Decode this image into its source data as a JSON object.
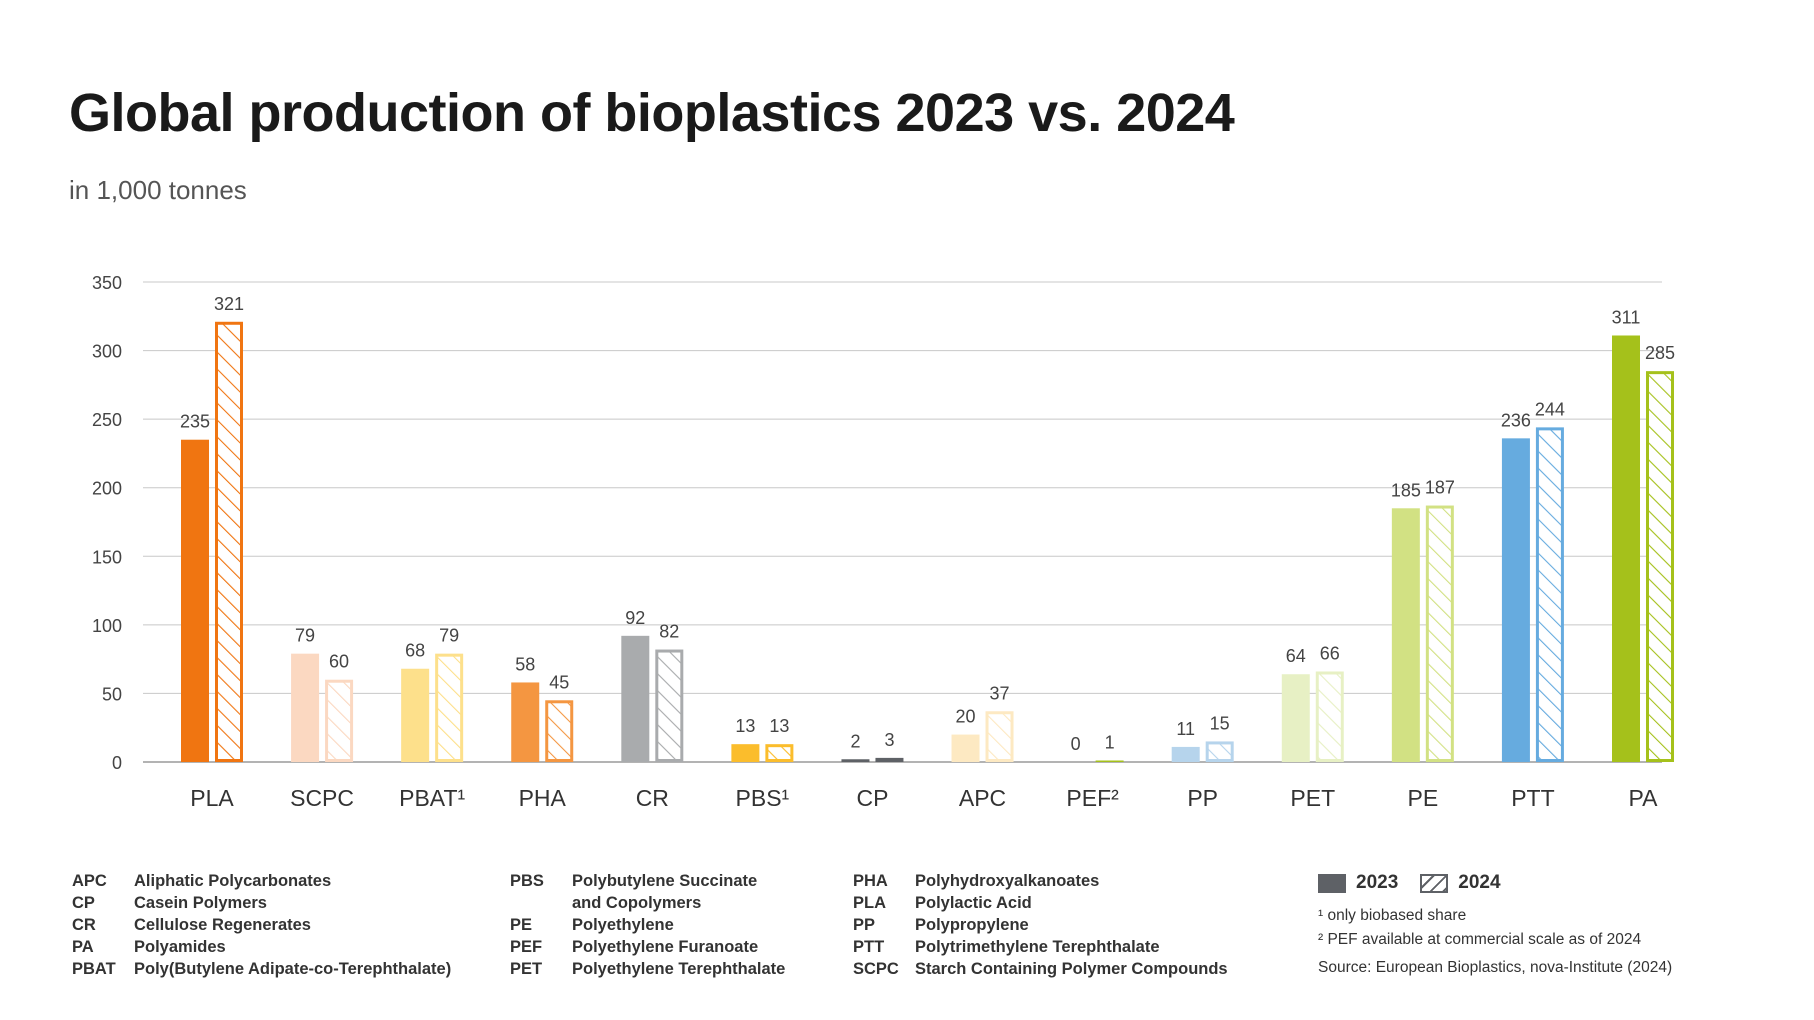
{
  "title": "Global production of bioplastics 2023 vs. 2024",
  "subtitle": "in 1,000 tonnes",
  "chart_data": {
    "type": "bar",
    "title": "Global production of bioplastics 2023 vs. 2024",
    "subtitle": "in 1,000 tonnes",
    "categories": [
      "PLA",
      "SCPC",
      "PBAT¹",
      "PHA",
      "CR",
      "PBS¹",
      "CP",
      "APC",
      "PEF²",
      "PP",
      "PET",
      "PE",
      "PTT",
      "PA"
    ],
    "series": [
      {
        "name": "2023",
        "values": [
          235,
          79,
          68,
          58,
          92,
          13,
          2,
          20,
          0,
          11,
          64,
          185,
          236,
          311
        ]
      },
      {
        "name": "2024",
        "values": [
          321,
          60,
          79,
          45,
          82,
          13,
          3,
          37,
          1,
          15,
          66,
          187,
          244,
          285
        ]
      }
    ],
    "colors": [
      "#f07511",
      "#fbd8c1",
      "#fde08b",
      "#f49641",
      "#a9abad",
      "#fbbd2c",
      "#5e6166",
      "#fde9c2",
      "#a5c11b",
      "#b6d4ec",
      "#e7f0c4",
      "#d2e183",
      "#66abdf",
      "#a5c11b"
    ],
    "yticks": [
      0,
      50,
      100,
      150,
      200,
      250,
      300,
      350
    ],
    "ylim": [
      0,
      350
    ],
    "grid": true,
    "legend": "bottom-right"
  },
  "abbreviations": [
    [
      {
        "code": "APC",
        "name": "Aliphatic Polycarbonates"
      },
      {
        "code": "CP",
        "name": "Casein Polymers"
      },
      {
        "code": "CR",
        "name": "Cellulose Regenerates"
      },
      {
        "code": "PA",
        "name": "Polyamides"
      },
      {
        "code": "PBAT",
        "name": "Poly(Butylene Adipate-co-Terephthalate)"
      }
    ],
    [
      {
        "code": "PBS",
        "name": "Polybutylene Succinate"
      },
      {
        "code": "",
        "name": "and Copolymers"
      },
      {
        "code": "PE",
        "name": "Polyethylene"
      },
      {
        "code": "PEF",
        "name": "Polyethylene Furanoate"
      },
      {
        "code": "PET",
        "name": "Polyethylene Terephthalate"
      }
    ],
    [
      {
        "code": "PHA",
        "name": "Polyhydroxyalkanoates"
      },
      {
        "code": "PLA",
        "name": "Polylactic Acid"
      },
      {
        "code": "PP",
        "name": "Polypropylene"
      },
      {
        "code": "PTT",
        "name": "Polytrimethylene Terephthalate"
      },
      {
        "code": "SCPC",
        "name": "Starch Containing Polymer Compounds"
      }
    ]
  ],
  "legend": {
    "solid_label": "2023",
    "hatched_label": "2024"
  },
  "footnotes": {
    "note1": "¹ only biobased share",
    "note2": "² PEF available at commercial scale as of 2024",
    "source": "Source: European Bioplastics, nova-Institute (2024)"
  }
}
